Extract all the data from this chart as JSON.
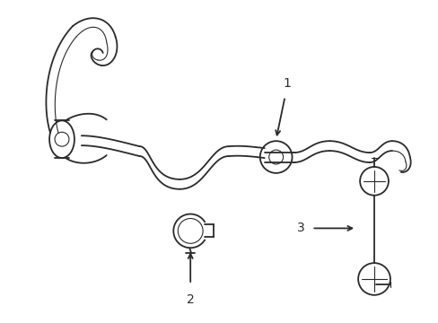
{
  "bg_color": "#ffffff",
  "lc": "#2a2a2a",
  "lw": 1.3,
  "tlw": 0.8,
  "label1": "1",
  "label2": "2",
  "label3": "3",
  "figsize": [
    4.89,
    3.6
  ],
  "dpi": 100
}
